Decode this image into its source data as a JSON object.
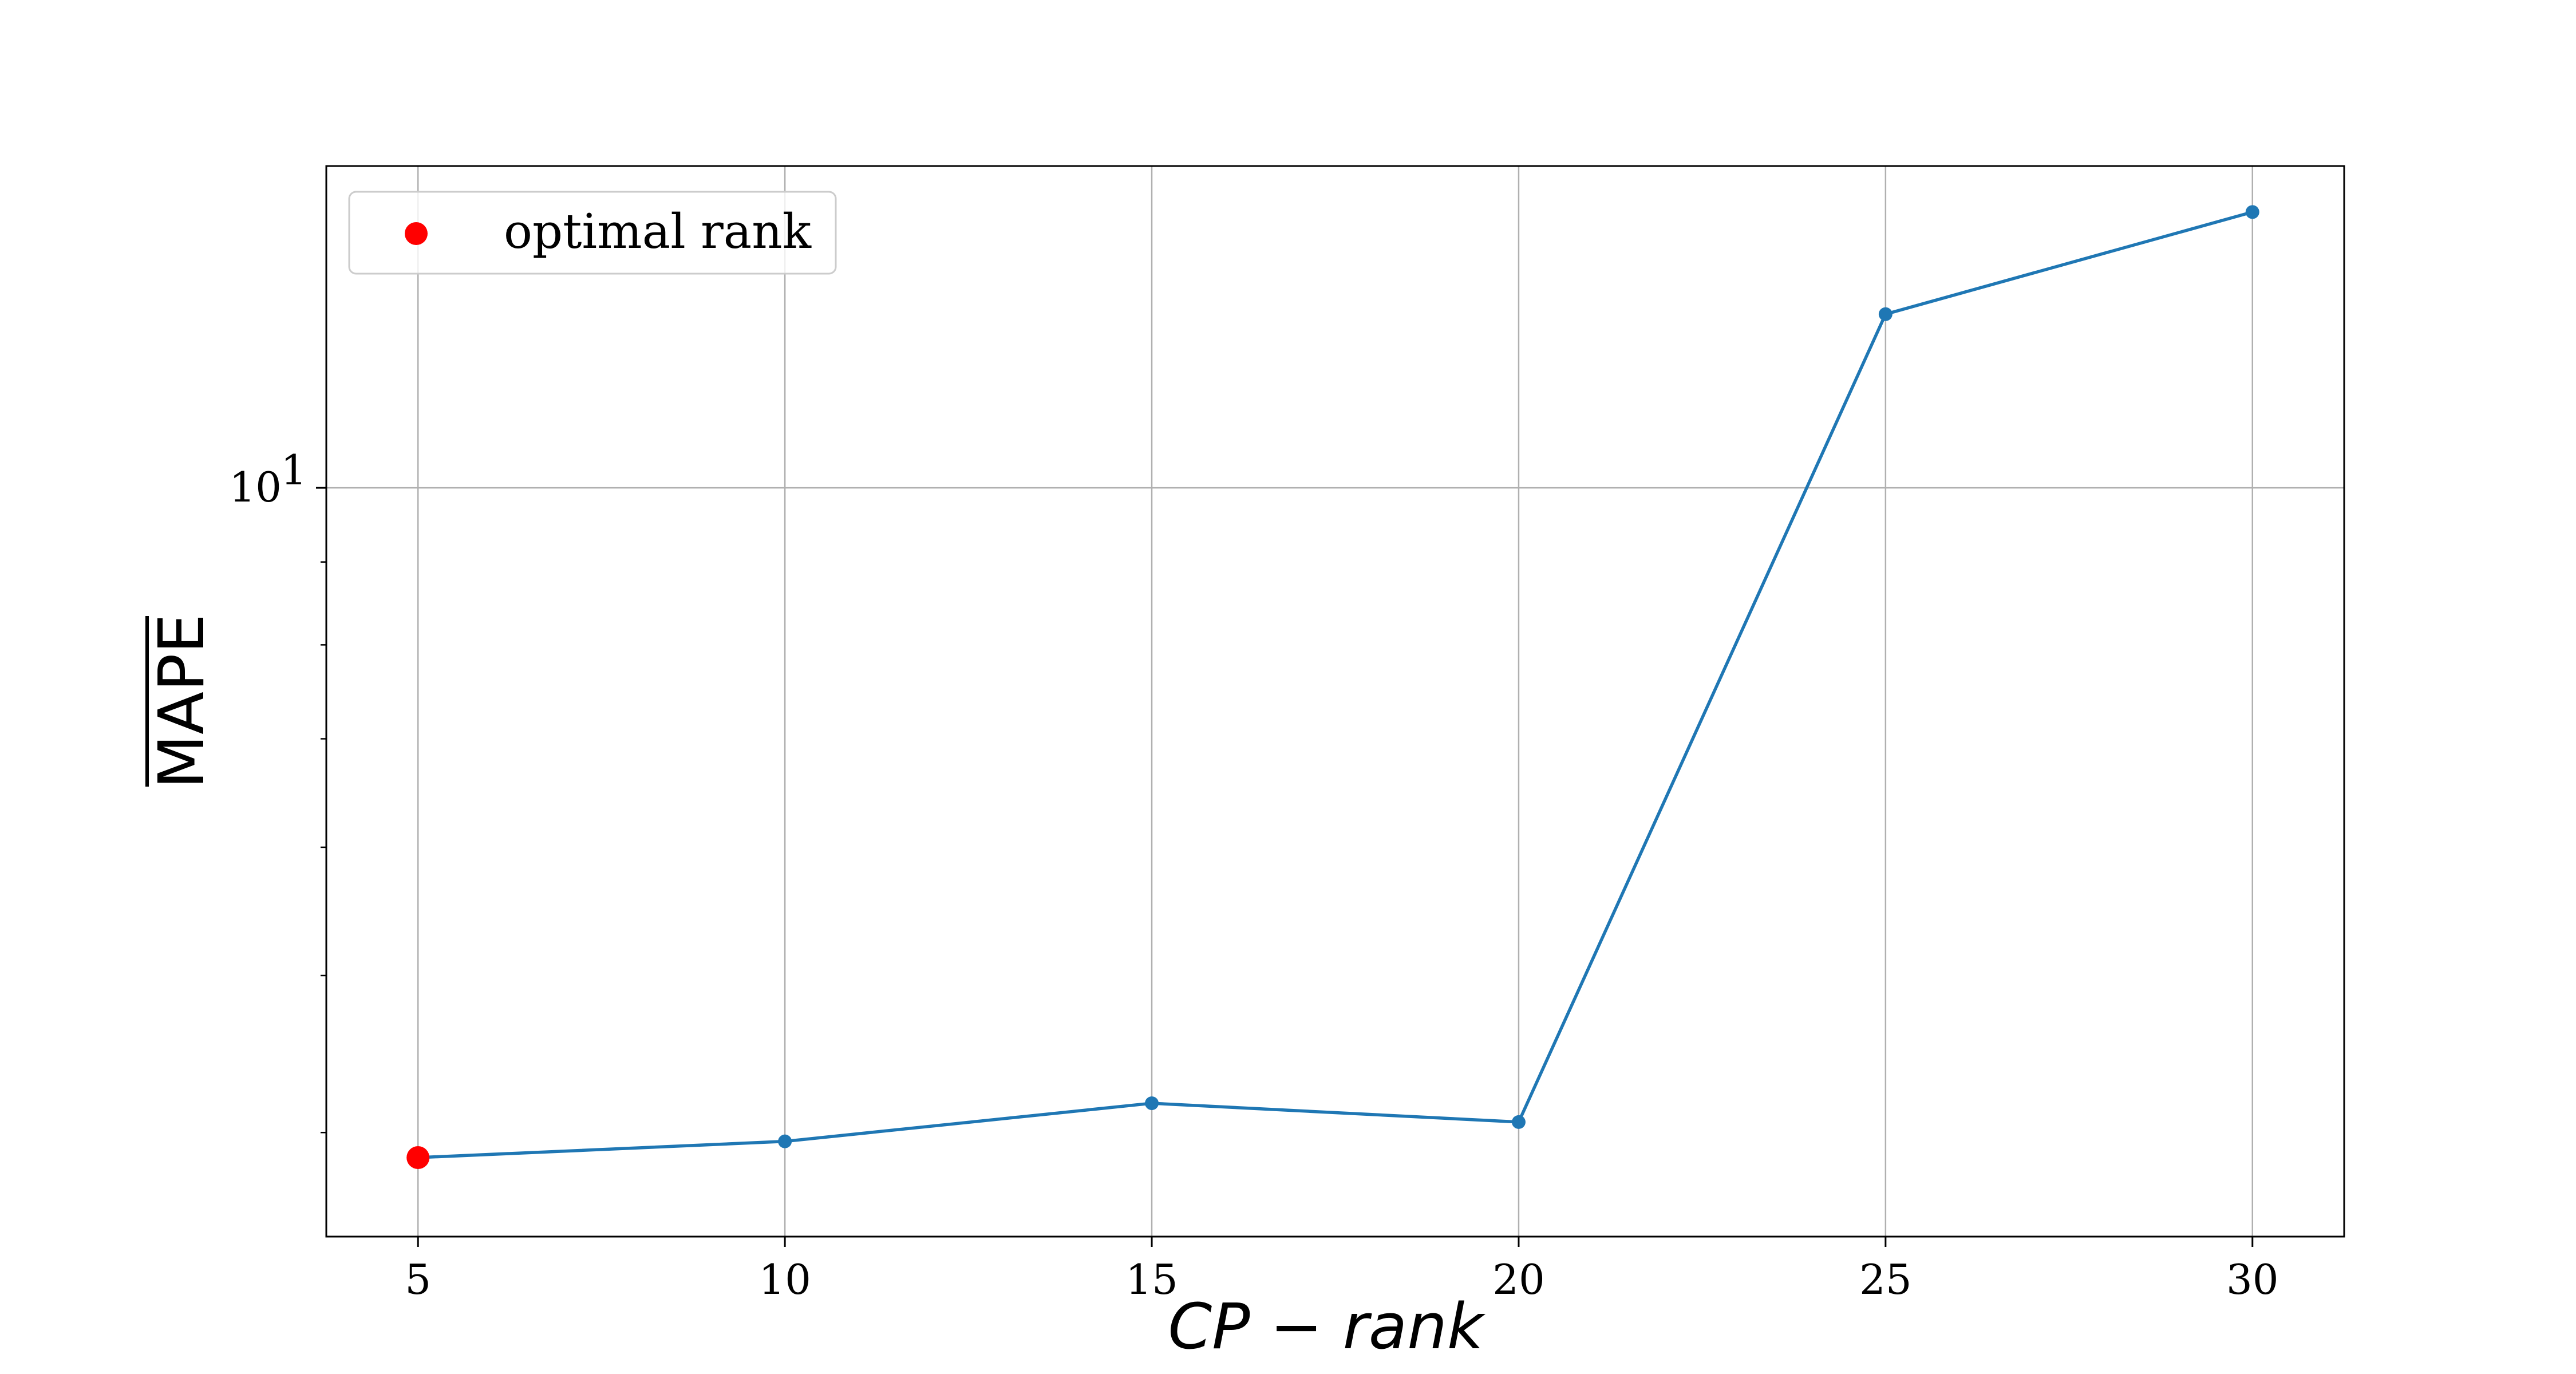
{
  "chart_data": {
    "type": "line",
    "title": "",
    "xlabel": "CP − rank",
    "ylabel": "MAPE",
    "yscale": "log",
    "xlim": [
      3.75,
      31.25
    ],
    "ylim": [
      3.45,
      15.8
    ],
    "grid": true,
    "legend_position": "top-left",
    "x_ticks": [
      5,
      10,
      15,
      20,
      25,
      30
    ],
    "x_tick_labels": [
      "5",
      "10",
      "15",
      "20",
      "25",
      "30"
    ],
    "y_ticks": [
      10
    ],
    "y_tick_labels": [
      {
        "base": "10",
        "exp": "1"
      }
    ],
    "series": [
      {
        "x": [
          5,
          10,
          15,
          20,
          25,
          30
        ],
        "values": [
          3.86,
          3.95,
          4.17,
          4.06,
          12.8,
          14.8
        ],
        "color": "#1f77b4"
      }
    ],
    "highlight": {
      "name": "optimal rank",
      "x": 5,
      "y": 3.86,
      "color": "#ff0000"
    }
  }
}
